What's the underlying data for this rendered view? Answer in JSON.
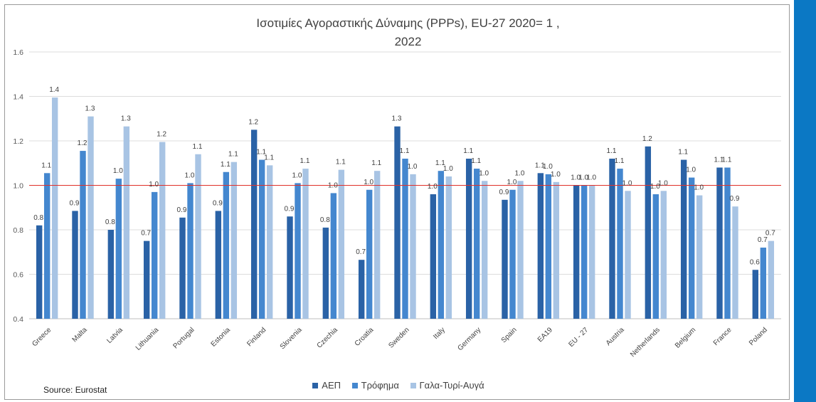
{
  "colors": {
    "page_background": "#ffffff",
    "right_band": "#0b78c4",
    "reference_line": "#e0302a",
    "gridline": "#dcdcdc"
  },
  "chart_data": {
    "type": "bar",
    "title_lines": [
      "Ισοτιμίες Αγοραστικής Δύναμης (PPPs),  EU-27 2020= 1 ,",
      "2022"
    ],
    "xlabel": "",
    "ylabel": "",
    "ylim": [
      0.4,
      1.6
    ],
    "yticks": [
      "0.4",
      "0.6",
      "0.8",
      "1.0",
      "1.2",
      "1.4",
      "1.6"
    ],
    "grid": true,
    "legend_position": "bottom",
    "reference_line": 1.0,
    "categories": [
      "Greece",
      "Malta",
      "Latvia",
      "Lithuania",
      "Portugal",
      "Estonia",
      "Finland",
      "Slovenia",
      "Czechia",
      "Croatia",
      "Sweden",
      "Italy",
      "Germany",
      "Spain",
      "EA19",
      "EU - 27",
      "Austria",
      "Netherlands",
      "Belgium",
      "France",
      "Poland"
    ],
    "series": [
      {
        "name": "ΑΕΠ",
        "color": "#2a62a6",
        "values": [
          0.82,
          0.885,
          0.8,
          0.75,
          0.855,
          0.885,
          1.25,
          0.86,
          0.81,
          0.665,
          1.265,
          0.96,
          1.12,
          0.935,
          1.055,
          1.0,
          1.12,
          1.175,
          1.115,
          1.08,
          0.62
        ],
        "labels": [
          "0.8",
          "0.9",
          "0.8",
          "0.7",
          "0.9",
          "0.9",
          "1.2",
          "0.9",
          "0.8",
          "0.7",
          "1.3",
          "1.0",
          "1.1",
          "0.9",
          "1.1",
          "1.0",
          "1.1",
          "1.2",
          "1.1",
          "1.1",
          "0.6"
        ]
      },
      {
        "name": "Τρόφημα",
        "color": "#4487cf",
        "values": [
          1.055,
          1.155,
          1.03,
          0.97,
          1.01,
          1.06,
          1.115,
          1.01,
          0.965,
          0.98,
          1.12,
          1.065,
          1.075,
          0.98,
          1.05,
          1.0,
          1.075,
          0.96,
          1.035,
          1.08,
          0.72
        ],
        "labels": [
          "1.1",
          "1.2",
          "1.0",
          "1.0",
          "1.0",
          "1.1",
          "1.1",
          "1.0",
          "1.0",
          "1.0",
          "1.1",
          "1.1",
          "1.1",
          "1.0",
          "1.0",
          "1.0",
          "1.1",
          "1.0",
          "1.0",
          "1.1",
          "0.7"
        ]
      },
      {
        "name": "Γαλα-Τυρί-Αυγά",
        "color": "#a8c4e4",
        "values": [
          1.395,
          1.31,
          1.265,
          1.195,
          1.14,
          1.105,
          1.09,
          1.075,
          1.07,
          1.065,
          1.05,
          1.04,
          1.02,
          1.02,
          1.015,
          1.0,
          0.975,
          0.975,
          0.955,
          0.905,
          0.75
        ],
        "labels": [
          "1.4",
          "1.3",
          "1.3",
          "1.2",
          "1.1",
          "1.1",
          "1.1",
          "1.1",
          "1.1",
          "1.1",
          "1.0",
          "1.0",
          "1.0",
          "1.0",
          "1.0",
          "1.0",
          "1.0",
          "1.0",
          "1.0",
          "0.9",
          "0.7"
        ]
      }
    ]
  },
  "source": "Source: Eurostat"
}
